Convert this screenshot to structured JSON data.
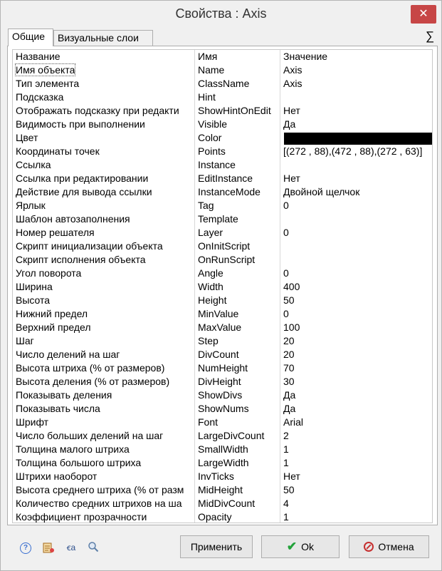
{
  "window": {
    "title": "Свойства :   Axis",
    "close_label": "✕"
  },
  "tabs": [
    {
      "label": "Общие",
      "active": true
    },
    {
      "label": "Визуальные слои",
      "active": false
    }
  ],
  "sigma": "∑",
  "grid": {
    "headers": [
      "Название",
      "Имя",
      "Значение"
    ],
    "rows": [
      [
        "Имя объекта",
        "Name",
        "Axis"
      ],
      [
        "Тип элемента",
        "ClassName",
        "Axis"
      ],
      [
        "Подсказка",
        "Hint",
        ""
      ],
      [
        "Отображать подсказку при редакти",
        "ShowHintOnEdit",
        "Нет"
      ],
      [
        "Видимость при выполнении",
        "Visible",
        "Да"
      ],
      [
        "Цвет",
        "Color",
        ""
      ],
      [
        "Координаты точек",
        "Points",
        "[(272 , 88),(472 , 88),(272 , 63)]"
      ],
      [
        "Ссылка",
        "Instance",
        ""
      ],
      [
        "Ссылка при редактировании",
        "EditInstance",
        "Нет"
      ],
      [
        "Действие для вывода ссылки",
        "InstanceMode",
        "Двойной щелчок"
      ],
      [
        "Ярлык",
        "Tag",
        "0"
      ],
      [
        "Шаблон автозаполнения",
        "Template",
        ""
      ],
      [
        "Номер решателя",
        "Layer",
        "0"
      ],
      [
        "Скрипт инициализации объекта",
        "OnInitScript",
        ""
      ],
      [
        "Скрипт исполнения объекта",
        "OnRunScript",
        ""
      ],
      [
        "Угол поворота",
        "Angle",
        "0"
      ],
      [
        "Ширина",
        "Width",
        "400"
      ],
      [
        "Высота",
        "Height",
        "50"
      ],
      [
        "Нижний предел",
        "MinValue",
        "0"
      ],
      [
        "Верхний предел",
        "MaxValue",
        "100"
      ],
      [
        "Шаг",
        "Step",
        "20"
      ],
      [
        "Число делений на шаг",
        "DivCount",
        "20"
      ],
      [
        "Высота штриха (% от размеров)",
        "NumHeight",
        "70"
      ],
      [
        "Высота деления (% от размеров)",
        "DivHeight",
        "30"
      ],
      [
        "Показывать деления",
        "ShowDivs",
        "Да"
      ],
      [
        "Показывать числа",
        "ShowNums",
        "Да"
      ],
      [
        "Шрифт",
        "Font",
        "Arial"
      ],
      [
        "Число больших делений на шаг",
        "LargeDivCount",
        "2"
      ],
      [
        "Толщина малого штриха",
        "SmallWidth",
        "1"
      ],
      [
        "Толщина большого штриха",
        "LargeWidth",
        "1"
      ],
      [
        "Штрихи наоборот",
        "InvTicks",
        "Нет"
      ],
      [
        "Высота среднего штриха (% от разм",
        "MidHeight",
        "50"
      ],
      [
        "Количество средних штрихов на ша",
        "MidDivCount",
        "4"
      ],
      [
        "Коэффициент прозрачности",
        "Opacity",
        "1"
      ]
    ],
    "color_value": "#000000"
  },
  "toolbar": {
    "help_icon": "?",
    "translit_icon": "ꞓa"
  },
  "buttons": {
    "apply": "Применить",
    "ok": "Ok",
    "cancel": "Отмена"
  }
}
